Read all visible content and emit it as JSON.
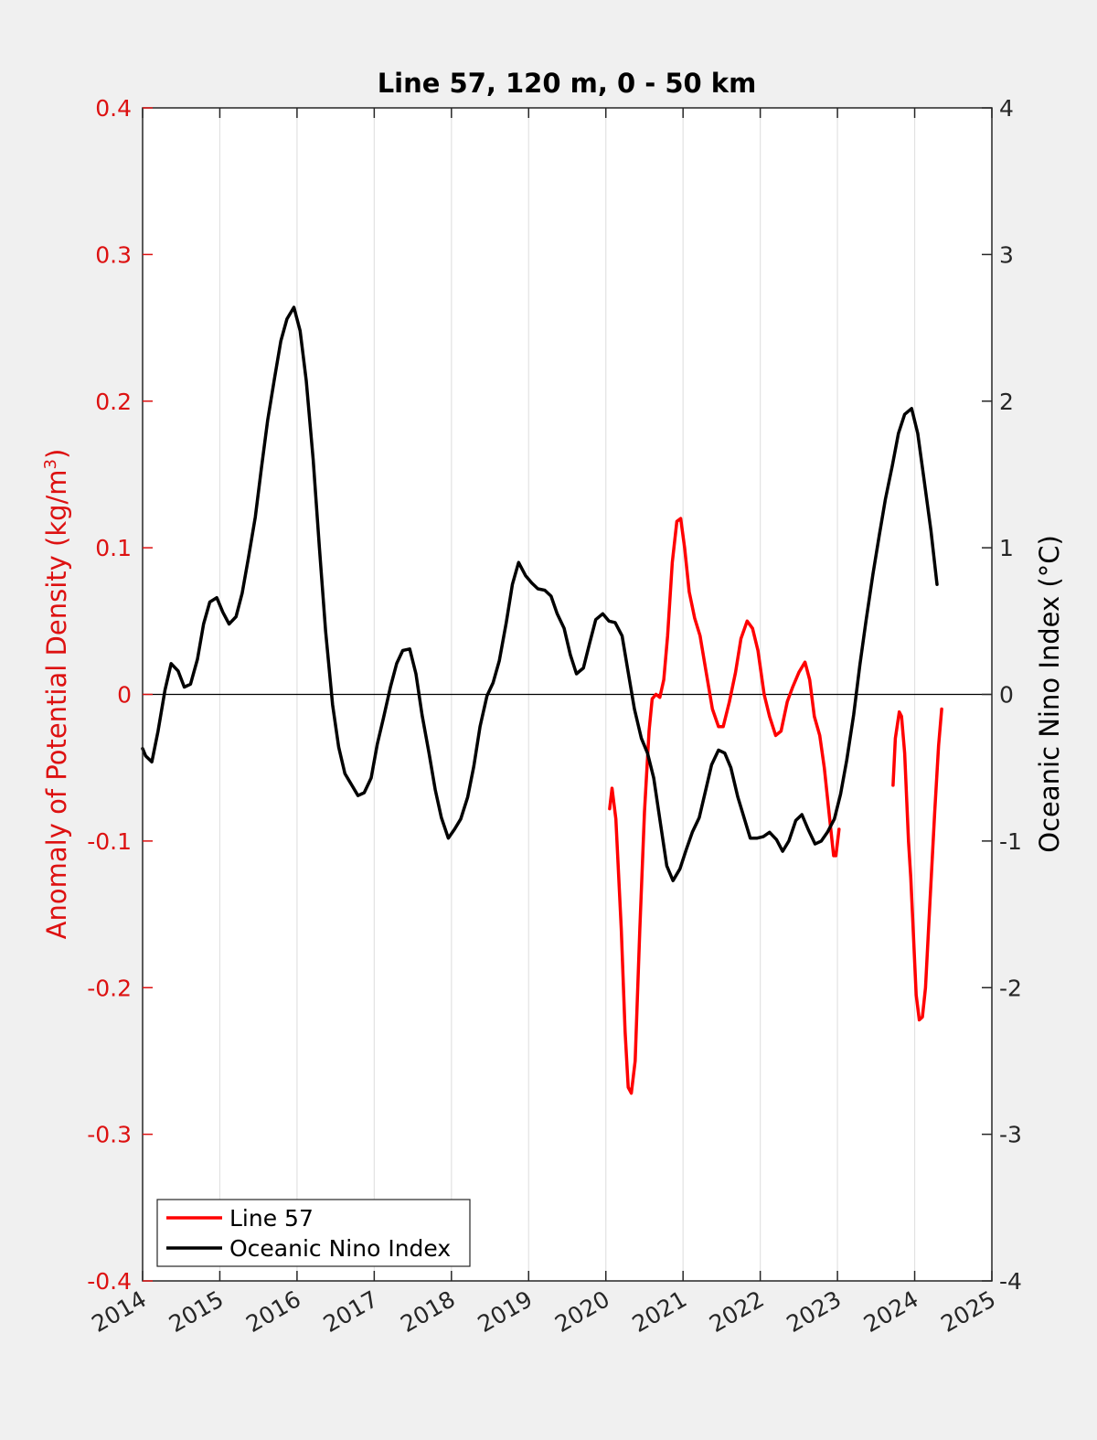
{
  "chart_data": {
    "type": "line",
    "title": "Line 57, 120 m, 0 - 50 km",
    "xlabel": "",
    "ylabel_left": "Anomaly of Potential Density (kg/m",
    "ylabel_left_sup": "3",
    "ylabel_left_close": ")",
    "ylabel_right": "Oceanic Nino Index (°C)",
    "xlim": [
      2014,
      2025
    ],
    "ylim_left": [
      -0.4,
      0.4
    ],
    "ylim_right": [
      -4,
      4
    ],
    "x_ticks": [
      "2014",
      "2015",
      "2016",
      "2017",
      "2018",
      "2019",
      "2020",
      "2021",
      "2022",
      "2023",
      "2024",
      "2025"
    ],
    "y_left_ticks": [
      "0.4",
      "0.3",
      "0.2",
      "0.1",
      "0",
      "-0.1",
      "-0.2",
      "-0.3",
      "-0.4"
    ],
    "y_right_ticks": [
      "4",
      "3",
      "2",
      "1",
      "0",
      "-1",
      "-2",
      "-3",
      "-4"
    ],
    "grid": "vertical",
    "legend_position": "bottom-left",
    "colors": {
      "line57": "#ff0000",
      "oni": "#000000",
      "left_axis": "#dd1111"
    },
    "series": [
      {
        "name": "Line 57",
        "axis": "left",
        "segments": [
          [
            [
              2020.05,
              -0.078
            ],
            [
              2020.08,
              -0.064
            ],
            [
              2020.13,
              -0.085
            ],
            [
              2020.2,
              -0.16
            ],
            [
              2020.25,
              -0.23
            ],
            [
              2020.29,
              -0.268
            ],
            [
              2020.33,
              -0.272
            ],
            [
              2020.38,
              -0.25
            ],
            [
              2020.44,
              -0.16
            ],
            [
              2020.5,
              -0.08
            ],
            [
              2020.56,
              -0.025
            ],
            [
              2020.6,
              -0.003
            ],
            [
              2020.65,
              0.0
            ],
            [
              2020.7,
              -0.002
            ],
            [
              2020.75,
              0.01
            ],
            [
              2020.8,
              0.04
            ],
            [
              2020.86,
              0.09
            ],
            [
              2020.92,
              0.118
            ],
            [
              2020.97,
              0.12
            ],
            [
              2021.02,
              0.1
            ],
            [
              2021.08,
              0.07
            ],
            [
              2021.15,
              0.052
            ],
            [
              2021.22,
              0.04
            ],
            [
              2021.3,
              0.015
            ],
            [
              2021.38,
              -0.01
            ],
            [
              2021.46,
              -0.022
            ],
            [
              2021.52,
              -0.022
            ],
            [
              2021.6,
              -0.005
            ],
            [
              2021.68,
              0.015
            ],
            [
              2021.75,
              0.038
            ],
            [
              2021.83,
              0.05
            ],
            [
              2021.9,
              0.045
            ],
            [
              2021.97,
              0.03
            ],
            [
              2022.05,
              0.0
            ],
            [
              2022.12,
              -0.015
            ],
            [
              2022.2,
              -0.028
            ],
            [
              2022.27,
              -0.025
            ],
            [
              2022.35,
              -0.005
            ],
            [
              2022.42,
              0.005
            ],
            [
              2022.5,
              0.015
            ],
            [
              2022.58,
              0.022
            ],
            [
              2022.64,
              0.01
            ],
            [
              2022.7,
              -0.015
            ],
            [
              2022.77,
              -0.028
            ],
            [
              2022.83,
              -0.05
            ],
            [
              2022.9,
              -0.085
            ],
            [
              2022.95,
              -0.11
            ],
            [
              2022.98,
              -0.11
            ],
            [
              2023.02,
              -0.092
            ]
          ],
          [
            [
              2023.72,
              -0.062
            ],
            [
              2023.75,
              -0.03
            ],
            [
              2023.8,
              -0.012
            ],
            [
              2023.83,
              -0.015
            ],
            [
              2023.87,
              -0.04
            ],
            [
              2023.92,
              -0.1
            ],
            [
              2023.95,
              -0.125
            ],
            [
              2023.98,
              -0.16
            ],
            [
              2024.02,
              -0.205
            ],
            [
              2024.06,
              -0.222
            ],
            [
              2024.1,
              -0.22
            ],
            [
              2024.14,
              -0.2
            ],
            [
              2024.2,
              -0.14
            ],
            [
              2024.26,
              -0.08
            ],
            [
              2024.31,
              -0.035
            ],
            [
              2024.35,
              -0.01
            ]
          ]
        ]
      },
      {
        "name": "Oceanic Nino Index",
        "axis": "right",
        "segments": [
          [
            [
              2014.0,
              -0.37
            ],
            [
              2014.04,
              -0.42
            ],
            [
              2014.12,
              -0.46
            ],
            [
              2014.2,
              -0.25
            ],
            [
              2014.29,
              0.03
            ],
            [
              2014.37,
              0.21
            ],
            [
              2014.46,
              0.16
            ],
            [
              2014.54,
              0.05
            ],
            [
              2014.62,
              0.07
            ],
            [
              2014.71,
              0.24
            ],
            [
              2014.79,
              0.48
            ],
            [
              2014.87,
              0.63
            ],
            [
              2014.96,
              0.66
            ],
            [
              2015.04,
              0.56
            ],
            [
              2015.12,
              0.48
            ],
            [
              2015.21,
              0.53
            ],
            [
              2015.29,
              0.69
            ],
            [
              2015.37,
              0.93
            ],
            [
              2015.46,
              1.21
            ],
            [
              2015.54,
              1.55
            ],
            [
              2015.62,
              1.87
            ],
            [
              2015.71,
              2.16
            ],
            [
              2015.79,
              2.41
            ],
            [
              2015.87,
              2.56
            ],
            [
              2015.96,
              2.64
            ],
            [
              2016.04,
              2.48
            ],
            [
              2016.12,
              2.14
            ],
            [
              2016.21,
              1.6
            ],
            [
              2016.29,
              1.0
            ],
            [
              2016.37,
              0.43
            ],
            [
              2016.46,
              -0.07
            ],
            [
              2016.54,
              -0.36
            ],
            [
              2016.62,
              -0.54
            ],
            [
              2016.71,
              -0.62
            ],
            [
              2016.79,
              -0.69
            ],
            [
              2016.87,
              -0.67
            ],
            [
              2016.96,
              -0.57
            ],
            [
              2017.04,
              -0.34
            ],
            [
              2017.12,
              -0.16
            ],
            [
              2017.21,
              0.05
            ],
            [
              2017.29,
              0.21
            ],
            [
              2017.37,
              0.3
            ],
            [
              2017.46,
              0.31
            ],
            [
              2017.54,
              0.14
            ],
            [
              2017.62,
              -0.14
            ],
            [
              2017.71,
              -0.4
            ],
            [
              2017.79,
              -0.65
            ],
            [
              2017.87,
              -0.84
            ],
            [
              2017.96,
              -0.98
            ],
            [
              2018.04,
              -0.92
            ],
            [
              2018.12,
              -0.85
            ],
            [
              2018.21,
              -0.7
            ],
            [
              2018.29,
              -0.49
            ],
            [
              2018.37,
              -0.22
            ],
            [
              2018.46,
              -0.01
            ],
            [
              2018.54,
              0.08
            ],
            [
              2018.62,
              0.23
            ],
            [
              2018.71,
              0.49
            ],
            [
              2018.79,
              0.75
            ],
            [
              2018.87,
              0.9
            ],
            [
              2018.96,
              0.81
            ],
            [
              2019.04,
              0.76
            ],
            [
              2019.12,
              0.72
            ],
            [
              2019.21,
              0.71
            ],
            [
              2019.29,
              0.67
            ],
            [
              2019.37,
              0.55
            ],
            [
              2019.46,
              0.45
            ],
            [
              2019.54,
              0.27
            ],
            [
              2019.62,
              0.14
            ],
            [
              2019.71,
              0.18
            ],
            [
              2019.79,
              0.35
            ],
            [
              2019.87,
              0.51
            ],
            [
              2019.96,
              0.55
            ],
            [
              2020.04,
              0.5
            ],
            [
              2020.12,
              0.49
            ],
            [
              2020.21,
              0.4
            ],
            [
              2020.29,
              0.15
            ],
            [
              2020.37,
              -0.1
            ],
            [
              2020.46,
              -0.3
            ],
            [
              2020.54,
              -0.4
            ],
            [
              2020.62,
              -0.57
            ],
            [
              2020.71,
              -0.89
            ],
            [
              2020.79,
              -1.17
            ],
            [
              2020.87,
              -1.27
            ],
            [
              2020.96,
              -1.19
            ],
            [
              2021.04,
              -1.06
            ],
            [
              2021.12,
              -0.94
            ],
            [
              2021.21,
              -0.84
            ],
            [
              2021.29,
              -0.66
            ],
            [
              2021.37,
              -0.48
            ],
            [
              2021.46,
              -0.38
            ],
            [
              2021.54,
              -0.4
            ],
            [
              2021.62,
              -0.5
            ],
            [
              2021.71,
              -0.7
            ],
            [
              2021.79,
              -0.84
            ],
            [
              2021.87,
              -0.98
            ],
            [
              2021.96,
              -0.98
            ],
            [
              2022.04,
              -0.97
            ],
            [
              2022.12,
              -0.94
            ],
            [
              2022.21,
              -0.99
            ],
            [
              2022.29,
              -1.07
            ],
            [
              2022.37,
              -1.0
            ],
            [
              2022.46,
              -0.86
            ],
            [
              2022.54,
              -0.82
            ],
            [
              2022.62,
              -0.92
            ],
            [
              2022.71,
              -1.02
            ],
            [
              2022.79,
              -1.0
            ],
            [
              2022.87,
              -0.94
            ],
            [
              2022.96,
              -0.85
            ],
            [
              2023.04,
              -0.68
            ],
            [
              2023.12,
              -0.45
            ],
            [
              2023.21,
              -0.14
            ],
            [
              2023.29,
              0.2
            ],
            [
              2023.37,
              0.5
            ],
            [
              2023.46,
              0.82
            ],
            [
              2023.54,
              1.08
            ],
            [
              2023.62,
              1.33
            ],
            [
              2023.71,
              1.56
            ],
            [
              2023.79,
              1.78
            ],
            [
              2023.87,
              1.91
            ],
            [
              2023.96,
              1.95
            ],
            [
              2024.04,
              1.78
            ],
            [
              2024.12,
              1.47
            ],
            [
              2024.21,
              1.12
            ],
            [
              2024.29,
              0.75
            ]
          ]
        ]
      }
    ]
  }
}
